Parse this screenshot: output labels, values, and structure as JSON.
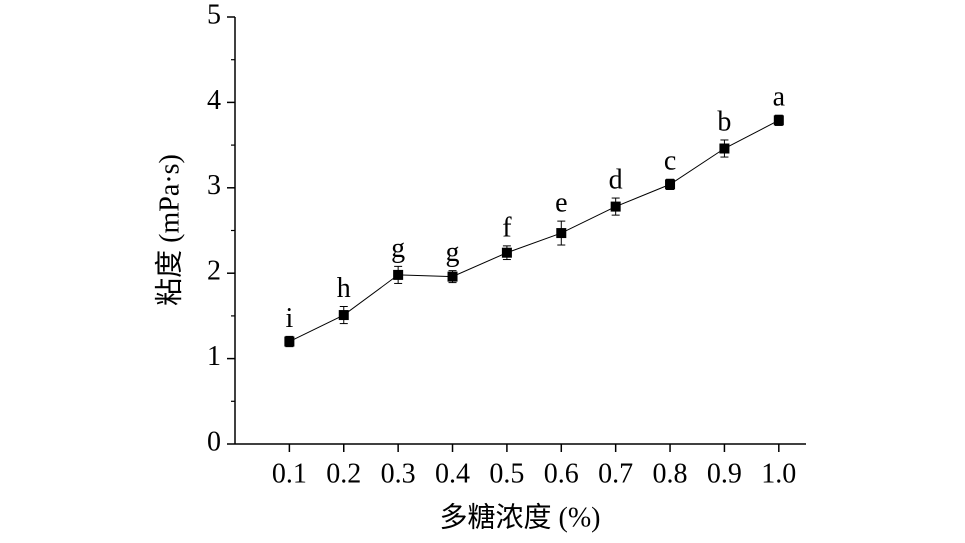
{
  "chart_data": {
    "type": "line",
    "xlabel": "多糖浓度 (%)",
    "ylabel": "粘度 (mPa·s)",
    "x": [
      0.1,
      0.2,
      0.3,
      0.4,
      0.5,
      0.6,
      0.7,
      0.8,
      0.9,
      1.0
    ],
    "values": [
      1.2,
      1.51,
      1.98,
      1.96,
      2.24,
      2.47,
      2.78,
      3.04,
      3.46,
      3.79
    ],
    "errors": [
      0.06,
      0.1,
      0.1,
      0.07,
      0.08,
      0.14,
      0.1,
      0.06,
      0.1,
      0.06
    ],
    "point_labels": [
      "i",
      "h",
      "g",
      "g",
      "f",
      "e",
      "d",
      "c",
      "b",
      "a"
    ],
    "color": "#000000",
    "xlim": [
      0,
      1.05
    ],
    "ylim": [
      0,
      5
    ],
    "xticks": [
      0.1,
      0.2,
      0.3,
      0.4,
      0.5,
      0.6,
      0.7,
      0.8,
      0.9,
      {
        "value": 1,
        "label": "1.0"
      }
    ],
    "yticks": [
      0,
      1,
      2,
      3,
      4,
      5
    ]
  }
}
